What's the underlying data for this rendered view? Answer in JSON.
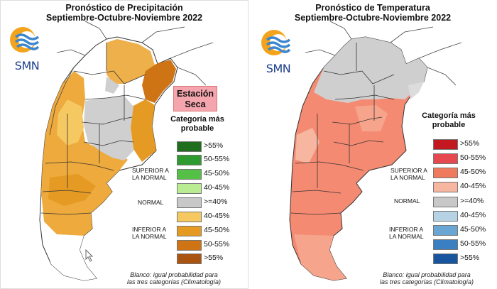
{
  "left": {
    "title_line1": "Pronóstico de Precipitación",
    "title_line2": "Septiembre-Octubre-Noviembre 2022",
    "logo_text": "SMN",
    "dry_line1": "Estación",
    "dry_line2": "Seca",
    "legend_title_line1": "Categoría más",
    "legend_title_line2": "probable",
    "groups": {
      "superior_line1": "SUPERIOR A",
      "superior_line2": "LA NORMAL",
      "normal": "NORMAL",
      "inferior_line1": "INFERIOR A",
      "inferior_line2": "LA NORMAL"
    },
    "legend": [
      {
        "label": ">55%",
        "color": "#1e6e1e"
      },
      {
        "label": "50-55%",
        "color": "#2f9a2f"
      },
      {
        "label": "45-50%",
        "color": "#55c046"
      },
      {
        "label": "40-45%",
        "color": "#b9ec93"
      },
      {
        "label": ">=40%",
        "color": "#c8c8c8"
      },
      {
        "label": "40-45%",
        "color": "#f5c862"
      },
      {
        "label": "45-50%",
        "color": "#e59a24"
      },
      {
        "label": "50-55%",
        "color": "#cf7414"
      },
      {
        "label": ">55%",
        "color": "#a95410"
      }
    ],
    "footnote_line1": "Blanco: igual probabilidad para",
    "footnote_line2": "las tres categorías (Climatología)"
  },
  "right": {
    "title_line1": "Pronóstico de Temperatura",
    "title_line2": "Septiembre-Octubre-Noviembre 2022",
    "logo_text": "SMN",
    "legend_title_line1": "Categoría más",
    "legend_title_line2": "probable",
    "groups": {
      "superior_line1": "SUPERIOR A",
      "superior_line2": "LA NORMAL",
      "normal": "NORMAL",
      "inferior_line1": "INFERIOR A",
      "inferior_line2": "LA NORMAL"
    },
    "legend": [
      {
        "label": ">55%",
        "color": "#c41820"
      },
      {
        "label": "50-55%",
        "color": "#e5484e"
      },
      {
        "label": "45-50%",
        "color": "#f07a5e"
      },
      {
        "label": "40-45%",
        "color": "#f6b6a0"
      },
      {
        "label": ">=40%",
        "color": "#c8c8c8"
      },
      {
        "label": "40-45%",
        "color": "#b6d3e6"
      },
      {
        "label": "45-50%",
        "color": "#6aa6d4"
      },
      {
        "label": "50-55%",
        "color": "#3a7fc2"
      },
      {
        "label": ">55%",
        "color": "#17569e"
      }
    ],
    "footnote_line1": "Blanco: igual probabilidad para",
    "footnote_line2": "las tres categorías (Climatología)"
  }
}
